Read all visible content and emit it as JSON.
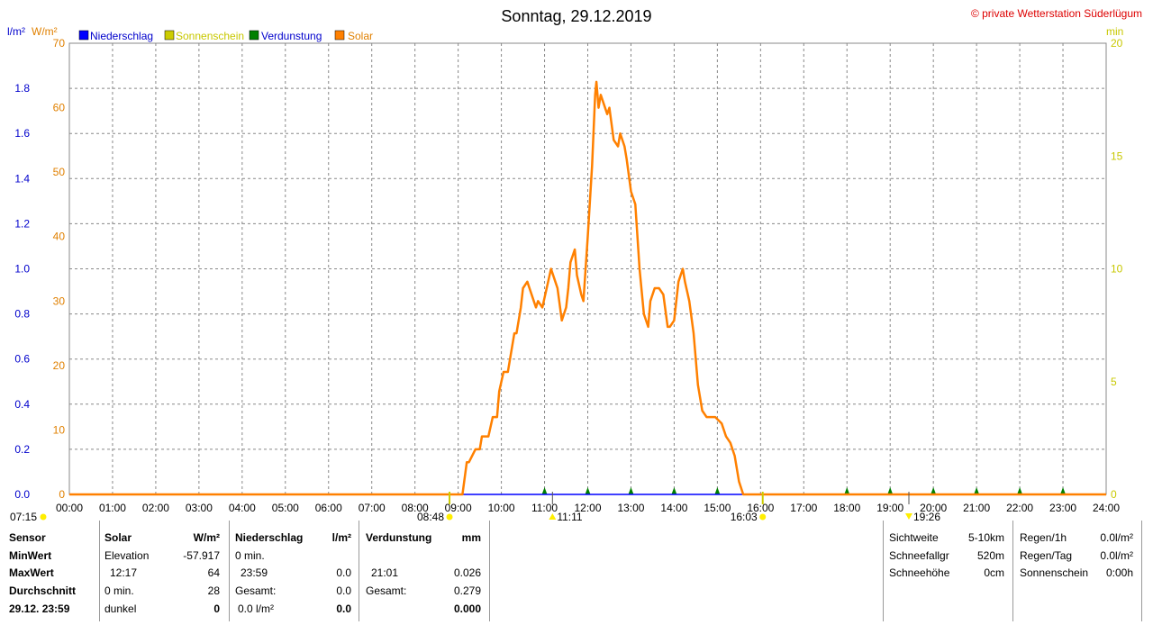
{
  "header": {
    "title": "Sonntag, 29.12.2019",
    "credit": "© private Wetterstation Süderlügum",
    "left_units_1": "l/m²",
    "left_units_2": "W/m²",
    "right_units": "min"
  },
  "legend": [
    {
      "label": "Niederschlag",
      "color": "#0000ff"
    },
    {
      "label": "Sonnenschein",
      "color": "#cccc00"
    },
    {
      "label": "Verdunstung",
      "color": "#008000"
    },
    {
      "label": "Solar",
      "color": "#ff8000"
    }
  ],
  "colors": {
    "precip_axis": "#0000cc",
    "solar_axis": "#e08000",
    "sun_axis": "#c8c800",
    "solar_line": "#ff8000",
    "grid": "#888888",
    "credit": "#dd0000"
  },
  "chart_data": {
    "type": "line",
    "title": "Sonntag, 29.12.2019",
    "x_ticks": [
      "00:00",
      "01:00",
      "02:00",
      "03:00",
      "04:00",
      "05:00",
      "06:00",
      "07:00",
      "08:00",
      "09:00",
      "10:00",
      "11:00",
      "12:00",
      "13:00",
      "14:00",
      "15:00",
      "16:00",
      "17:00",
      "18:00",
      "19:00",
      "20:00",
      "21:00",
      "22:00",
      "23:00",
      "24:00"
    ],
    "xlim": [
      0,
      24
    ],
    "y_left_precip_ticks": [
      "0.0",
      "0.2",
      "0.4",
      "0.6",
      "0.8",
      "1.0",
      "1.2",
      "1.4",
      "1.6",
      "1.8"
    ],
    "y_left_precip_lim": [
      0,
      2.0
    ],
    "y_left_solar_ticks": [
      "0",
      "10",
      "20",
      "30",
      "40",
      "50",
      "60",
      "70"
    ],
    "y_left_solar_lim": [
      0,
      70
    ],
    "y_right_sun_ticks": [
      "0",
      "5",
      "10",
      "15",
      "20"
    ],
    "y_right_sun_lim": [
      0,
      20
    ],
    "grid": true,
    "legend_position": "top-left",
    "series": [
      {
        "name": "Solar",
        "unit": "W/m²",
        "x_hours": [
          0,
          9.1,
          9.2,
          9.25,
          9.4,
          9.5,
          9.55,
          9.7,
          9.8,
          9.9,
          9.95,
          10.05,
          10.15,
          10.3,
          10.35,
          10.45,
          10.5,
          10.6,
          10.65,
          10.75,
          10.8,
          10.85,
          10.95,
          11.05,
          11.15,
          11.25,
          11.3,
          11.4,
          11.5,
          11.55,
          11.6,
          11.7,
          11.75,
          11.85,
          11.9,
          12.0,
          12.1,
          12.17,
          12.2,
          12.25,
          12.3,
          12.45,
          12.5,
          12.6,
          12.7,
          12.75,
          12.85,
          12.9,
          13.0,
          13.1,
          13.2,
          13.3,
          13.4,
          13.45,
          13.55,
          13.65,
          13.75,
          13.85,
          13.9,
          14.0,
          14.1,
          14.2,
          14.25,
          14.35,
          14.45,
          14.55,
          14.65,
          14.75,
          14.85,
          14.95,
          15.1,
          15.2,
          15.3,
          15.4,
          15.5,
          15.6,
          15.75,
          15.8,
          15.85,
          24.0
        ],
        "values": [
          0,
          0,
          5,
          5,
          7,
          7,
          9,
          9,
          12,
          12,
          16,
          19,
          19,
          25,
          25,
          29,
          32,
          33,
          32,
          30,
          29,
          30,
          29,
          32,
          35,
          33,
          32,
          27,
          29,
          32,
          36,
          38,
          34,
          31,
          30,
          40,
          51,
          62,
          64,
          60,
          62,
          59,
          60,
          55,
          54,
          56,
          54,
          52,
          47,
          45,
          35,
          28,
          26,
          30,
          32,
          32,
          31,
          26,
          26,
          27,
          33,
          35,
          33,
          30,
          25,
          17,
          13,
          12,
          12,
          12,
          11,
          9,
          8,
          6,
          2,
          0,
          0,
          0,
          0,
          0
        ]
      },
      {
        "name": "Niederschlag",
        "unit": "l/m²",
        "x_hours": [
          0,
          24
        ],
        "values": [
          0,
          0
        ]
      },
      {
        "name": "Verdunstung",
        "unit": "mm",
        "marker_hours": [
          11,
          12,
          13,
          14,
          15,
          18,
          19,
          20,
          21,
          22,
          23
        ]
      }
    ],
    "annotations": [
      "07:15",
      "08:48",
      "11:11",
      "16:03",
      "19:26"
    ]
  },
  "annotation_hours": {
    "t0715": 7.25,
    "t0848": 8.8,
    "t1111": 11.1833,
    "t1603": 16.05,
    "t1926": 19.4333
  },
  "stats": {
    "rows": [
      "Sensor",
      "MinWert",
      "MaxWert",
      "Durchschnitt",
      "29.12. 23:59"
    ],
    "solar": {
      "header": "Solar",
      "unit": "W/m²",
      "r1": "Elevation",
      "r1v": "-57.917",
      "r2": "12:17",
      "r2v": "64",
      "r3": "0 min.",
      "r3v": "28",
      "r4": "dunkel",
      "r4v": "0"
    },
    "precip": {
      "header": "Niederschlag",
      "unit": "l/m²",
      "r1": "0 min.",
      "r2": "23:59",
      "r2v": "0.0",
      "r3": "Gesamt:",
      "r3v": "0.0",
      "r4": "0.0 l/m²",
      "r4v": "0.0"
    },
    "evap": {
      "header": "Verdunstung",
      "unit": "mm",
      "r2": "21:01",
      "r2v": "0.026",
      "r3": "Gesamt:",
      "r3v": "0.279",
      "r4v": "0.000"
    },
    "visibility": {
      "r1": "Sichtweite",
      "r1v": "5-10km",
      "r2": "Schneefallgr",
      "r2v": "520m",
      "r3": "Schneehöhe",
      "r3v": "0cm"
    },
    "rain": {
      "r1": "Regen/1h",
      "r1v": "0.0l/m²",
      "r2": "Regen/Tag",
      "r2v": "0.0l/m²",
      "r3": "Sonnenschein",
      "r3v": "0:00h"
    }
  }
}
